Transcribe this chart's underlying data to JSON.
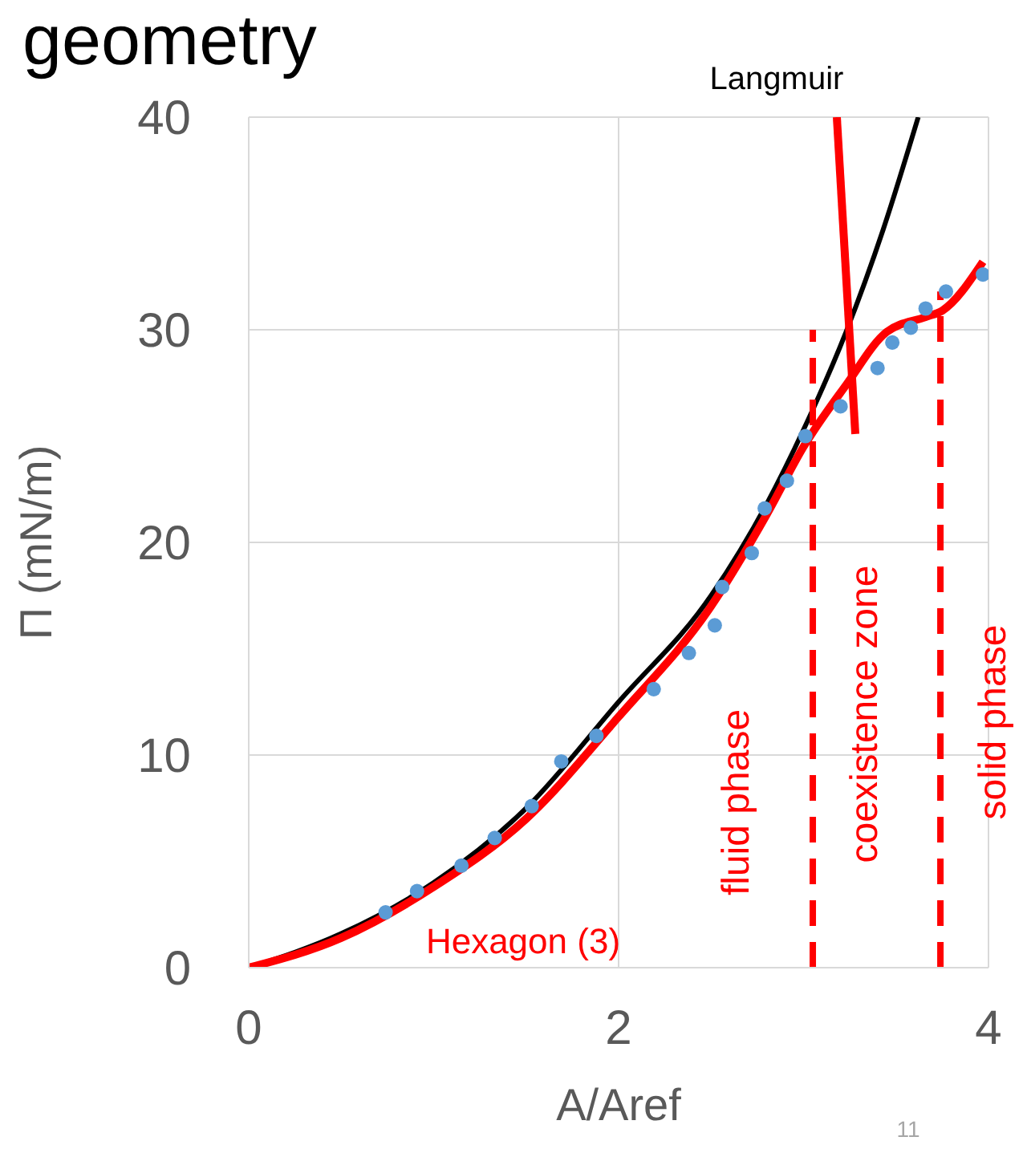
{
  "chart_data": {
    "type": "line",
    "title": "geometry",
    "xlabel": "A/Aref",
    "ylabel": "Π (mN/m)",
    "xlim": [
      0,
      4
    ],
    "xticks": [
      0,
      2,
      4
    ],
    "ylim": [
      0,
      40
    ],
    "yticks": [
      0,
      10,
      20,
      30,
      40
    ],
    "grid": true,
    "legend": false,
    "series": [
      {
        "color": "#000000",
        "line_style": "solid",
        "marker": "none",
        "x": [
          0,
          0.5,
          1,
          1.5,
          2,
          2.5,
          2.8,
          3.0,
          3.23,
          3.43,
          3.62
        ],
        "values": [
          0,
          1.6,
          4.0,
          7.5,
          12.5,
          17.5,
          21.8,
          25.3,
          29.9,
          34.7,
          40
        ]
      },
      {
        "color": "#ff0000",
        "line_style": "solid",
        "marker": "none",
        "x": [
          0,
          0.5,
          1,
          1.5,
          2,
          2.5,
          2.8,
          3.0,
          3.23,
          3.45,
          3.66,
          3.75,
          3.97
        ],
        "values": [
          0,
          1.4,
          3.8,
          7.0,
          11.8,
          17.0,
          21.3,
          24.5,
          27.4,
          29.9,
          30.6,
          30.9,
          33.2
        ]
      },
      {
        "color": "#ff0000",
        "line_style": "solid",
        "marker": "none",
        "x": [
          3.18,
          3.28
        ],
        "values": [
          40,
          25.1
        ]
      },
      {
        "type": "scatter",
        "color": "#5b9bd5",
        "marker": "circle",
        "x": [
          0.74,
          0.91,
          1.15,
          1.33,
          1.53,
          1.69,
          1.88,
          2.19,
          2.38,
          2.52,
          2.56,
          2.72,
          2.79,
          2.91,
          3.01,
          3.2,
          3.4,
          3.48,
          3.58,
          3.66,
          3.77,
          3.97
        ],
        "values": [
          2.6,
          3.6,
          4.8,
          6.1,
          7.6,
          9.7,
          10.9,
          13.1,
          14.8,
          16.1,
          17.9,
          19.5,
          21.6,
          22.9,
          25.0,
          26.4,
          28.2,
          29.4,
          30.1,
          31.0,
          31.8,
          32.6
        ]
      },
      {
        "color": "#ff0000",
        "line_style": "dashed",
        "marker": "none",
        "x": [
          3.05,
          3.05
        ],
        "values": [
          0,
          30
        ]
      },
      {
        "color": "#ff0000",
        "line_style": "dashed",
        "marker": "none",
        "x": [
          3.74,
          3.74
        ],
        "values": [
          0,
          31.8
        ]
      }
    ],
    "annotations": [
      "Langmuir",
      "Hexagon (3)",
      "fluid phase",
      "coexistence zone",
      "solid phase",
      "11"
    ]
  }
}
